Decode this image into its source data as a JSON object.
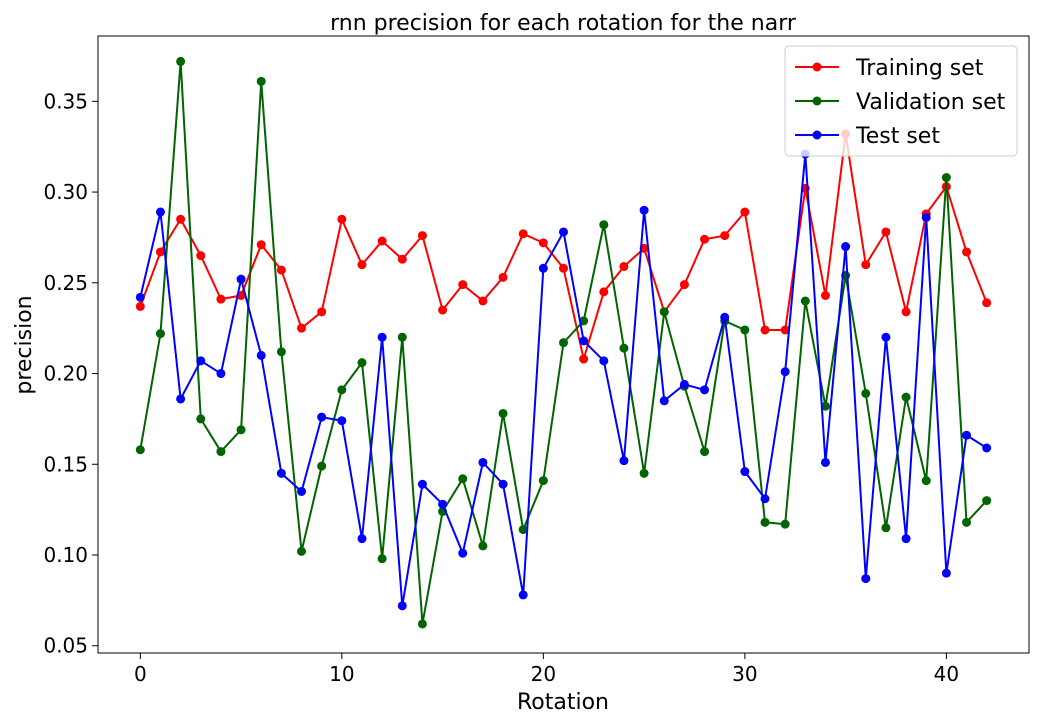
{
  "chart_data": {
    "type": "line",
    "title": "rnn precision for each rotation for the narr",
    "xlabel": "Rotation",
    "ylabel": "precision",
    "xlim": [
      -2.1,
      44.1
    ],
    "ylim": [
      0.046,
      0.386
    ],
    "xticks": [
      0,
      10,
      20,
      30,
      40
    ],
    "xtick_labels": [
      "0",
      "10",
      "20",
      "30",
      "40"
    ],
    "yticks": [
      0.05,
      0.1,
      0.15,
      0.2,
      0.25,
      0.3,
      0.35
    ],
    "ytick_labels": [
      "0.05",
      "0.10",
      "0.15",
      "0.20",
      "0.25",
      "0.30",
      "0.35"
    ],
    "grid": false,
    "legend_position": "top-right",
    "x": [
      0,
      1,
      2,
      3,
      4,
      5,
      6,
      7,
      8,
      9,
      10,
      11,
      12,
      13,
      14,
      15,
      16,
      17,
      18,
      19,
      20,
      21,
      22,
      23,
      24,
      25,
      26,
      27,
      28,
      29,
      30,
      31,
      32,
      33,
      34,
      35,
      36,
      37,
      38,
      39,
      40,
      41,
      42
    ],
    "series": [
      {
        "name": "Training set",
        "color": "#ff0000",
        "values": [
          0.237,
          0.267,
          0.285,
          0.265,
          0.241,
          0.243,
          0.271,
          0.257,
          0.225,
          0.234,
          0.285,
          0.26,
          0.273,
          0.263,
          0.276,
          0.235,
          0.249,
          0.24,
          0.253,
          0.277,
          0.272,
          0.258,
          0.208,
          0.245,
          0.259,
          0.269,
          0.234,
          0.249,
          0.274,
          0.276,
          0.289,
          0.224,
          0.224,
          0.302,
          0.243,
          0.332,
          0.26,
          0.278,
          0.234,
          0.288,
          0.303,
          0.267,
          0.239
        ]
      },
      {
        "name": "Validation set",
        "color": "#006400",
        "values": [
          0.158,
          0.222,
          0.372,
          0.175,
          0.157,
          0.169,
          0.361,
          0.212,
          0.102,
          0.149,
          0.191,
          0.206,
          0.098,
          0.22,
          0.062,
          0.124,
          0.142,
          0.105,
          0.178,
          0.114,
          0.141,
          0.217,
          0.229,
          0.282,
          0.214,
          0.145,
          0.234,
          0.193,
          0.157,
          0.229,
          0.224,
          0.118,
          0.117,
          0.24,
          0.182,
          0.254,
          0.189,
          0.115,
          0.187,
          0.141,
          0.308,
          0.118,
          0.13
        ]
      },
      {
        "name": "Test set",
        "color": "#0000ff",
        "values": [
          0.242,
          0.289,
          0.186,
          0.207,
          0.2,
          0.252,
          0.21,
          0.145,
          0.135,
          0.176,
          0.174,
          0.109,
          0.22,
          0.072,
          0.139,
          0.128,
          0.101,
          0.151,
          0.139,
          0.078,
          0.258,
          0.278,
          0.218,
          0.207,
          0.152,
          0.29,
          0.185,
          0.194,
          0.191,
          0.231,
          0.146,
          0.131,
          0.201,
          0.321,
          0.151,
          0.27,
          0.087,
          0.22,
          0.109,
          0.286,
          0.09,
          0.166,
          0.159
        ]
      }
    ]
  }
}
